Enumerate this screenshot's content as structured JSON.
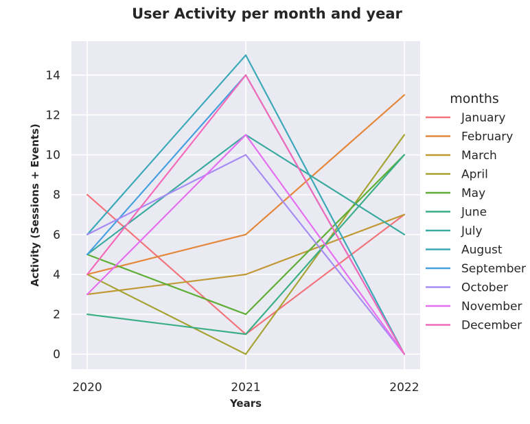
{
  "chart_data": {
    "type": "line",
    "title": "User Activity per month and year",
    "xlabel": "Years",
    "ylabel": "Activity (Sessions + Events)",
    "x": [
      2020,
      2021,
      2022
    ],
    "x_tick_labels": [
      "2020",
      "2021",
      "2022"
    ],
    "y_ticks": [
      0,
      2,
      4,
      6,
      8,
      10,
      12,
      14
    ],
    "y_tick_labels": [
      "0",
      "2",
      "4",
      "6",
      "8",
      "10",
      "12",
      "14"
    ],
    "ylim": [
      -0.75,
      15.7
    ],
    "xlim": [
      2019.9,
      2022.1
    ],
    "grid": true,
    "legend_title": "months",
    "legend_placement": "right",
    "series": [
      {
        "name": "January",
        "values": [
          8,
          1,
          7
        ],
        "color": "#f2737a"
      },
      {
        "name": "February",
        "values": [
          4,
          6,
          13
        ],
        "color": "#e4873a"
      },
      {
        "name": "March",
        "values": [
          3,
          4,
          7
        ],
        "color": "#c09935"
      },
      {
        "name": "April",
        "values": [
          4,
          0,
          11
        ],
        "color": "#a5a433"
      },
      {
        "name": "May",
        "values": [
          5,
          2,
          10
        ],
        "color": "#5eae35"
      },
      {
        "name": "June",
        "values": [
          2,
          1,
          10
        ],
        "color": "#3aae84"
      },
      {
        "name": "July",
        "values": [
          5,
          11,
          6
        ],
        "color": "#3aaaa0"
      },
      {
        "name": "August",
        "values": [
          6,
          15,
          0
        ],
        "color": "#3ba9b8"
      },
      {
        "name": "September",
        "values": [
          5,
          14,
          0
        ],
        "color": "#45a0e0"
      },
      {
        "name": "October",
        "values": [
          6,
          10,
          0
        ],
        "color": "#a68cf2"
      },
      {
        "name": "November",
        "values": [
          3,
          11,
          0
        ],
        "color": "#e56ef1"
      },
      {
        "name": "December",
        "values": [
          4,
          14,
          0
        ],
        "color": "#f46aba"
      }
    ]
  }
}
